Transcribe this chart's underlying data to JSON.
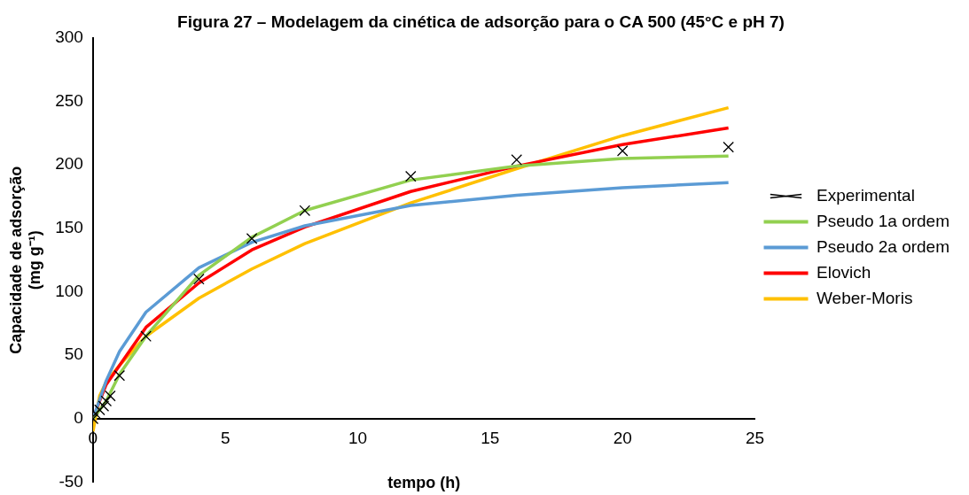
{
  "chart_data": {
    "type": "line",
    "title": "Figura 27 – Modelagem da cinética de adsorção para o CA 500 (45°C e pH 7)",
    "xlabel": "tempo (h)",
    "ylabel": [
      "Capacidade de adsorção",
      "(mg g⁻¹)"
    ],
    "xlim": [
      0,
      25
    ],
    "xticks": [
      0,
      5,
      10,
      15,
      20,
      25
    ],
    "ylim": [
      -50,
      300
    ],
    "yticks": [
      -50,
      0,
      50,
      100,
      150,
      200,
      250,
      300
    ],
    "grid": false,
    "legend": "right",
    "line_style": "solid",
    "series": [
      {
        "name": "Experimental",
        "type": "scatter",
        "marker": "cross",
        "color": "#000000",
        "x": [
          0,
          0.1,
          0.25,
          0.4,
          0.5,
          0.65,
          1,
          2,
          4,
          6,
          8,
          12,
          16,
          20,
          24
        ],
        "values": [
          0,
          4,
          7,
          10,
          14,
          18,
          34,
          65,
          110,
          142,
          164,
          191,
          204,
          211,
          214
        ]
      },
      {
        "name": "Pseudo 1a ordem",
        "type": "line",
        "marker": "none",
        "color": "#92d050",
        "x": [
          0,
          0.25,
          0.5,
          1,
          2,
          4,
          6,
          8,
          12,
          16,
          20,
          24
        ],
        "values": [
          0,
          7,
          14,
          35,
          65,
          113,
          143,
          164,
          188,
          199,
          205,
          207
        ]
      },
      {
        "name": "Pseudo 2a ordem",
        "type": "line",
        "marker": "none",
        "color": "#5b9bd5",
        "x": [
          0,
          0.25,
          0.5,
          1,
          2,
          4,
          6,
          8,
          12,
          16,
          20,
          24
        ],
        "values": [
          0,
          15,
          30,
          53,
          84,
          119,
          139,
          152,
          168,
          176,
          182,
          186
        ]
      },
      {
        "name": "Elovich",
        "type": "line",
        "marker": "none",
        "color": "#ff0000",
        "x": [
          0,
          0.25,
          0.5,
          1,
          2,
          4,
          6,
          8,
          12,
          16,
          20,
          24
        ],
        "values": [
          0,
          14,
          27,
          42,
          72,
          107,
          133,
          151,
          179,
          199,
          216,
          229
        ]
      },
      {
        "name": "Weber-Moris",
        "type": "line",
        "marker": "none",
        "color": "#ffc000",
        "x": [
          0,
          0.25,
          0.5,
          1,
          2,
          4,
          6,
          8,
          12,
          16,
          20,
          24
        ],
        "values": [
          -10,
          18,
          29,
          42,
          65,
          95,
          118,
          138,
          170,
          197,
          223,
          245
        ]
      }
    ]
  }
}
